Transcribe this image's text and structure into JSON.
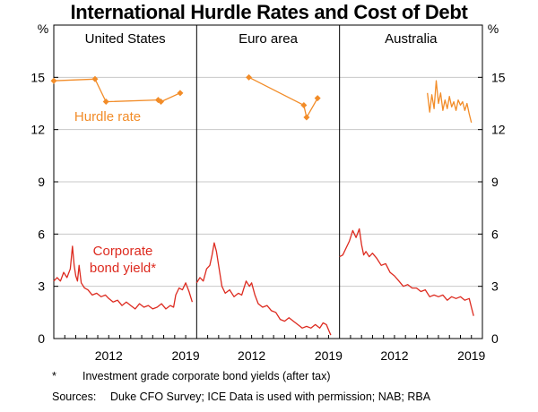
{
  "chart_data": {
    "type": "line",
    "title": "International Hurdle Rates and Cost of Debt",
    "unit_left": "%",
    "unit_right": "%",
    "ylim": [
      0,
      18
    ],
    "yticks": [
      0,
      3,
      6,
      9,
      12,
      15
    ],
    "ytick_labels": [
      "0",
      "3",
      "6",
      "9",
      "12",
      "15"
    ],
    "xlim": [
      2007,
      2020
    ],
    "xtick_labels": [
      "2012",
      "2019"
    ],
    "xtick_values": [
      2012,
      2019
    ],
    "annotations": {
      "hurdle": "Hurdle rate",
      "bond_line1": "Corporate",
      "bond_line2": "bond yield*"
    },
    "panels": [
      {
        "name": "United States",
        "series": [
          {
            "name": "Hurdle rate",
            "color": "#f28c28",
            "markers": true,
            "x": [
              2007.0,
              2010.75,
              2011.75,
              2016.5,
              2016.75,
              2018.5
            ],
            "y": [
              14.8,
              14.9,
              13.6,
              13.7,
              13.6,
              14.1
            ]
          },
          {
            "name": "Corporate bond yield",
            "color": "#dd2a1f",
            "markers": false,
            "x": [
              2007.0,
              2007.3,
              2007.6,
              2007.9,
              2008.2,
              2008.5,
              2008.7,
              2008.85,
              2009.0,
              2009.15,
              2009.3,
              2009.5,
              2009.8,
              2010.1,
              2010.5,
              2010.9,
              2011.3,
              2011.7,
              2012.0,
              2012.4,
              2012.8,
              2013.2,
              2013.6,
              2014.0,
              2014.4,
              2014.8,
              2015.2,
              2015.6,
              2016.0,
              2016.4,
              2016.8,
              2017.2,
              2017.6,
              2017.9,
              2018.1,
              2018.4,
              2018.7,
              2019.0,
              2019.3,
              2019.6
            ],
            "y": [
              3.3,
              3.5,
              3.3,
              3.8,
              3.5,
              4.0,
              5.3,
              4.2,
              3.6,
              3.3,
              4.2,
              3.2,
              2.9,
              2.8,
              2.5,
              2.6,
              2.4,
              2.5,
              2.3,
              2.1,
              2.2,
              1.9,
              2.1,
              1.9,
              1.7,
              2.0,
              1.8,
              1.9,
              1.7,
              1.8,
              2.0,
              1.7,
              1.9,
              1.8,
              2.5,
              2.9,
              2.8,
              3.2,
              2.7,
              2.1
            ]
          }
        ]
      },
      {
        "name": "Euro area",
        "series": [
          {
            "name": "Hurdle rate",
            "color": "#f28c28",
            "markers": true,
            "x": [
              2011.75,
              2016.75,
              2017.0,
              2018.0
            ],
            "y": [
              15.0,
              13.4,
              12.7,
              13.8
            ]
          },
          {
            "name": "Corporate bond yield",
            "color": "#dd2a1f",
            "markers": false,
            "x": [
              2007.0,
              2007.3,
              2007.6,
              2007.9,
              2008.2,
              2008.4,
              2008.6,
              2008.8,
              2009.0,
              2009.3,
              2009.6,
              2010.0,
              2010.4,
              2010.8,
              2011.1,
              2011.5,
              2011.8,
              2012.0,
              2012.3,
              2012.6,
              2013.0,
              2013.4,
              2013.8,
              2014.2,
              2014.6,
              2015.0,
              2015.4,
              2015.8,
              2016.2,
              2016.6,
              2017.0,
              2017.4,
              2017.8,
              2018.2,
              2018.5,
              2018.8,
              2019.0,
              2019.2
            ],
            "y": [
              3.2,
              3.5,
              3.3,
              4.0,
              4.2,
              4.8,
              5.5,
              5.0,
              4.2,
              3.0,
              2.6,
              2.8,
              2.4,
              2.6,
              2.5,
              3.3,
              3.0,
              3.2,
              2.5,
              2.0,
              1.8,
              1.9,
              1.6,
              1.5,
              1.1,
              1.0,
              1.2,
              1.0,
              0.8,
              0.6,
              0.7,
              0.6,
              0.8,
              0.6,
              0.9,
              0.8,
              0.5,
              0.2
            ]
          }
        ]
      },
      {
        "name": "Australia",
        "series": [
          {
            "name": "Hurdle rate",
            "color": "#f28c28",
            "markers": false,
            "x": [
              2015.0,
              2015.2,
              2015.4,
              2015.6,
              2015.8,
              2016.0,
              2016.2,
              2016.4,
              2016.6,
              2016.8,
              2017.0,
              2017.2,
              2017.4,
              2017.6,
              2017.8,
              2018.0,
              2018.2,
              2018.4,
              2018.6,
              2018.8,
              2019.0
            ],
            "y": [
              14.1,
              13.0,
              14.0,
              13.2,
              14.8,
              13.5,
              14.1,
              13.1,
              13.7,
              13.2,
              13.9,
              13.3,
              13.6,
              13.1,
              13.7,
              13.4,
              13.6,
              13.1,
              13.5,
              12.9,
              12.4
            ]
          },
          {
            "name": "Corporate bond yield",
            "color": "#dd2a1f",
            "markers": false,
            "x": [
              2007.0,
              2007.3,
              2007.6,
              2007.9,
              2008.2,
              2008.5,
              2008.8,
              2009.0,
              2009.2,
              2009.4,
              2009.7,
              2010.0,
              2010.4,
              2010.8,
              2011.2,
              2011.6,
              2012.0,
              2012.4,
              2012.8,
              2013.2,
              2013.6,
              2014.0,
              2014.4,
              2014.8,
              2015.2,
              2015.6,
              2016.0,
              2016.4,
              2016.8,
              2017.2,
              2017.6,
              2018.0,
              2018.4,
              2018.8,
              2019.0,
              2019.2
            ],
            "y": [
              4.7,
              4.8,
              5.2,
              5.6,
              6.2,
              5.8,
              6.3,
              5.4,
              4.8,
              5.0,
              4.7,
              4.9,
              4.6,
              4.2,
              4.3,
              3.8,
              3.6,
              3.3,
              3.0,
              3.1,
              2.9,
              2.9,
              2.7,
              2.8,
              2.4,
              2.5,
              2.4,
              2.5,
              2.2,
              2.4,
              2.3,
              2.4,
              2.2,
              2.3,
              1.8,
              1.3
            ]
          }
        ]
      }
    ]
  },
  "notes": {
    "footnote_mark": "*",
    "footnote": "Investment grade corporate bond yields (after tax)",
    "sources_label": "Sources:",
    "sources": "Duke CFO Survey; ICE Data is used with permission; NAB; RBA"
  }
}
